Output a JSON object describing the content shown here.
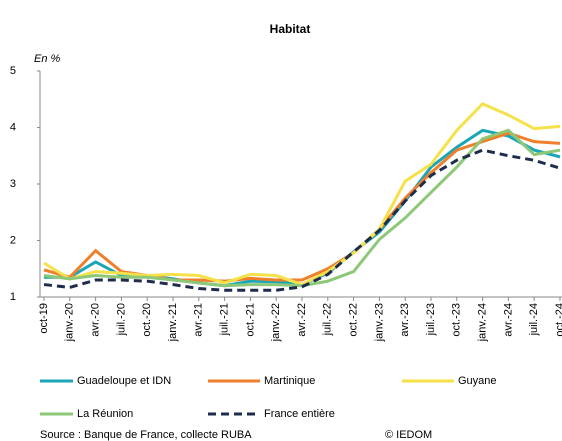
{
  "chart_data": {
    "type": "line",
    "title": "Habitat",
    "y_label": "En %",
    "categories": [
      "oct-19",
      "janv.-20",
      "avr.-20",
      "juil.-20",
      "oct.-20",
      "janv.-21",
      "avr.-21",
      "juil.-21",
      "oct.-21",
      "janv.-22",
      "avr.-22",
      "juil.-22",
      "oct.-22",
      "janv.-23",
      "avr.-23",
      "juil.-23",
      "oct.-23",
      "janv.-24",
      "avr.-24",
      "juil.-24",
      "oct.-24"
    ],
    "series": [
      {
        "name": "Guadeloupe et IDN",
        "color": "#1aa6b7",
        "values": [
          1.35,
          1.35,
          1.62,
          1.38,
          1.38,
          1.32,
          1.25,
          1.2,
          1.28,
          1.27,
          1.22,
          1.42,
          1.8,
          2.15,
          2.7,
          3.3,
          3.65,
          3.95,
          3.85,
          3.6,
          3.48
        ]
      },
      {
        "name": "Martinique",
        "color": "#f07f2c",
        "values": [
          1.48,
          1.35,
          1.82,
          1.45,
          1.38,
          1.3,
          1.3,
          1.28,
          1.33,
          1.3,
          1.3,
          1.5,
          1.78,
          2.2,
          2.75,
          3.2,
          3.6,
          3.75,
          3.9,
          3.75,
          3.72
        ]
      },
      {
        "name": "Guyane",
        "color": "#f5e14a",
        "values": [
          1.6,
          1.32,
          1.45,
          1.42,
          1.38,
          1.4,
          1.38,
          1.25,
          1.4,
          1.38,
          1.22,
          1.45,
          1.78,
          2.2,
          3.05,
          3.35,
          3.95,
          4.42,
          4.22,
          3.98,
          4.02
        ]
      },
      {
        "name": "La Réunion",
        "color": "#8dc878",
        "values": [
          1.38,
          1.32,
          1.38,
          1.35,
          1.35,
          1.3,
          1.25,
          1.2,
          1.22,
          1.22,
          1.2,
          1.28,
          1.45,
          2.02,
          2.4,
          2.85,
          3.3,
          3.8,
          3.95,
          3.52,
          3.6
        ]
      },
      {
        "name": "France entière",
        "color": "#1f2d4d",
        "dashed": true,
        "values": [
          1.22,
          1.17,
          1.3,
          1.3,
          1.28,
          1.22,
          1.15,
          1.12,
          1.12,
          1.12,
          1.18,
          1.4,
          1.8,
          2.18,
          2.7,
          3.15,
          3.42,
          3.6,
          3.5,
          3.42,
          3.28
        ]
      }
    ],
    "ylim": [
      1,
      5
    ],
    "yticks": [
      1,
      2,
      3,
      4,
      5
    ],
    "source": "Source : Banque de France, collecte RUBA",
    "copyright": "© IEDOM"
  }
}
